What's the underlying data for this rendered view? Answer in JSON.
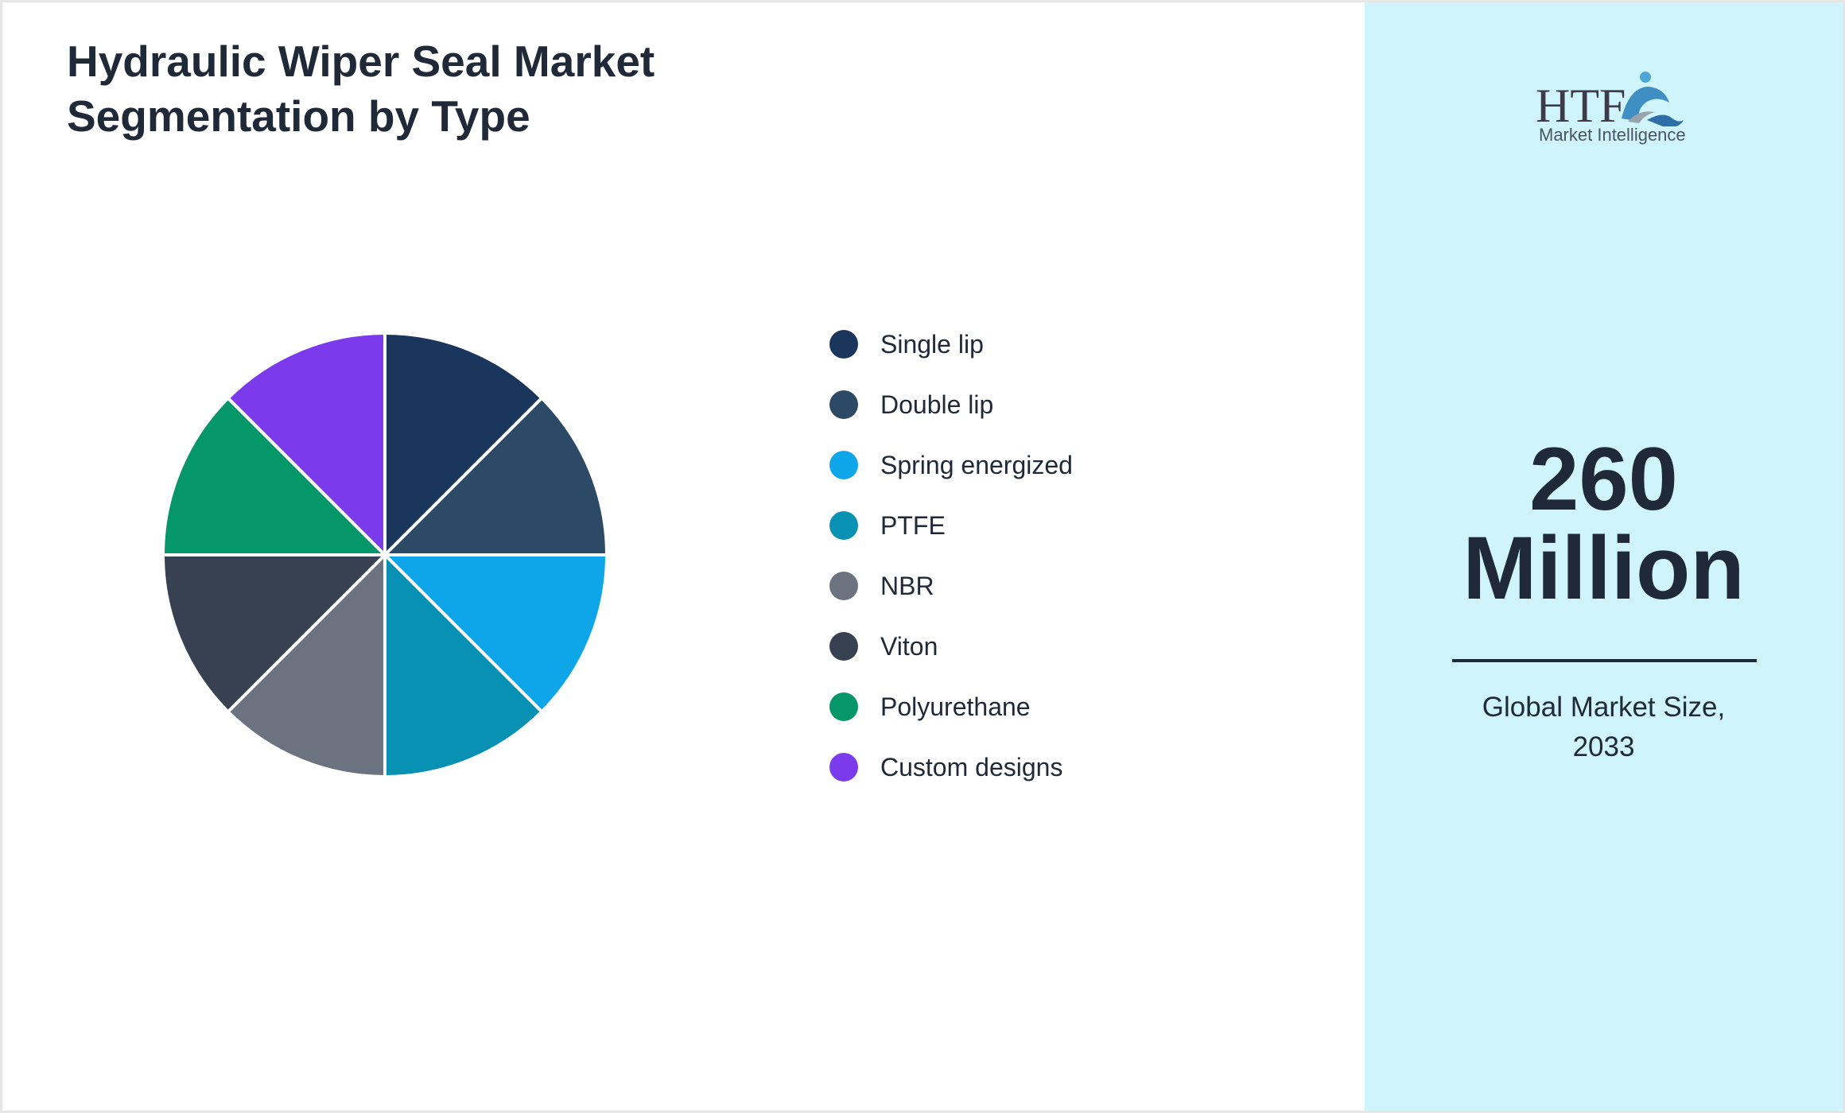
{
  "title_lines": [
    "Hydraulic Wiper Seal Market",
    "Segmentation by Type"
  ],
  "chart_data": {
    "type": "pie",
    "title": "Hydraulic Wiper Seal Market Segmentation by Type",
    "legend_placement": "right",
    "slices": [
      {
        "label": "Single lip",
        "value": 12.5,
        "color": "#1b365d"
      },
      {
        "label": "Double lip",
        "value": 12.5,
        "color": "#2c4a66"
      },
      {
        "label": "Spring energized",
        "value": 12.5,
        "color": "#0ea5e9"
      },
      {
        "label": "PTFE",
        "value": 12.5,
        "color": "#0891b2"
      },
      {
        "label": "NBR",
        "value": 12.5,
        "color": "#6b7280"
      },
      {
        "label": "Viton",
        "value": 12.5,
        "color": "#374151"
      },
      {
        "label": "Polyurethane",
        "value": 12.5,
        "color": "#059669"
      },
      {
        "label": "Custom designs",
        "value": 12.5,
        "color": "#7c3aed"
      }
    ]
  },
  "logo": {
    "mark": "HTF",
    "text": "Market Intelligence"
  },
  "market": {
    "value_line1": "260",
    "value_line2": "Million",
    "caption_line1": "Global Market Size,",
    "caption_line2": "2033"
  }
}
